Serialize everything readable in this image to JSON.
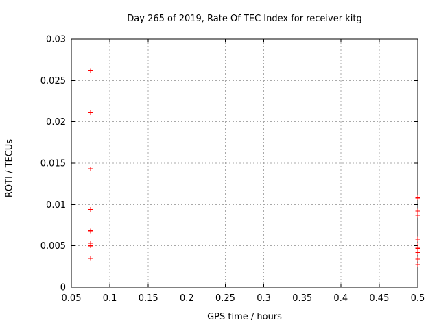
{
  "chart_data": {
    "type": "scatter",
    "title": "Day 265 of 2019, Rate Of TEC Index for receiver kitg",
    "xlabel": "GPS time / hours",
    "ylabel": "ROTI / TECUs",
    "xlim": [
      0.05,
      0.5
    ],
    "ylim": [
      0,
      0.03
    ],
    "x_ticks": [
      0.05,
      0.1,
      0.15,
      0.2,
      0.25,
      0.3,
      0.35,
      0.4,
      0.45,
      0.5
    ],
    "x_tick_labels": [
      "0.05",
      "0.1",
      "0.15",
      "0.2",
      "0.25",
      "0.3",
      "0.35",
      "0.4",
      "0.45",
      "0.5"
    ],
    "y_ticks": [
      0,
      0.005,
      0.01,
      0.015,
      0.02,
      0.025,
      0.03
    ],
    "y_tick_labels": [
      "0",
      "0.005",
      "0.01",
      "0.015",
      "0.02",
      "0.025",
      "0.03"
    ],
    "grid": true,
    "legend": "none",
    "marker": "plus",
    "marker_color": "#ff0000",
    "series": [
      {
        "name": "ROTI",
        "points": [
          [
            0.075,
            0.0262
          ],
          [
            0.075,
            0.0211
          ],
          [
            0.075,
            0.0143
          ],
          [
            0.075,
            0.0094
          ],
          [
            0.075,
            0.0068
          ],
          [
            0.075,
            0.0053
          ],
          [
            0.075,
            0.005
          ],
          [
            0.075,
            0.0035
          ],
          [
            0.5,
            0.0108
          ],
          [
            0.5,
            0.0092
          ],
          [
            0.5,
            0.0087
          ],
          [
            0.5,
            0.0058
          ],
          [
            0.5,
            0.0051
          ],
          [
            0.5,
            0.0047
          ],
          [
            0.5,
            0.0042
          ],
          [
            0.5,
            0.0034
          ],
          [
            0.5,
            0.0027
          ]
        ]
      }
    ]
  }
}
